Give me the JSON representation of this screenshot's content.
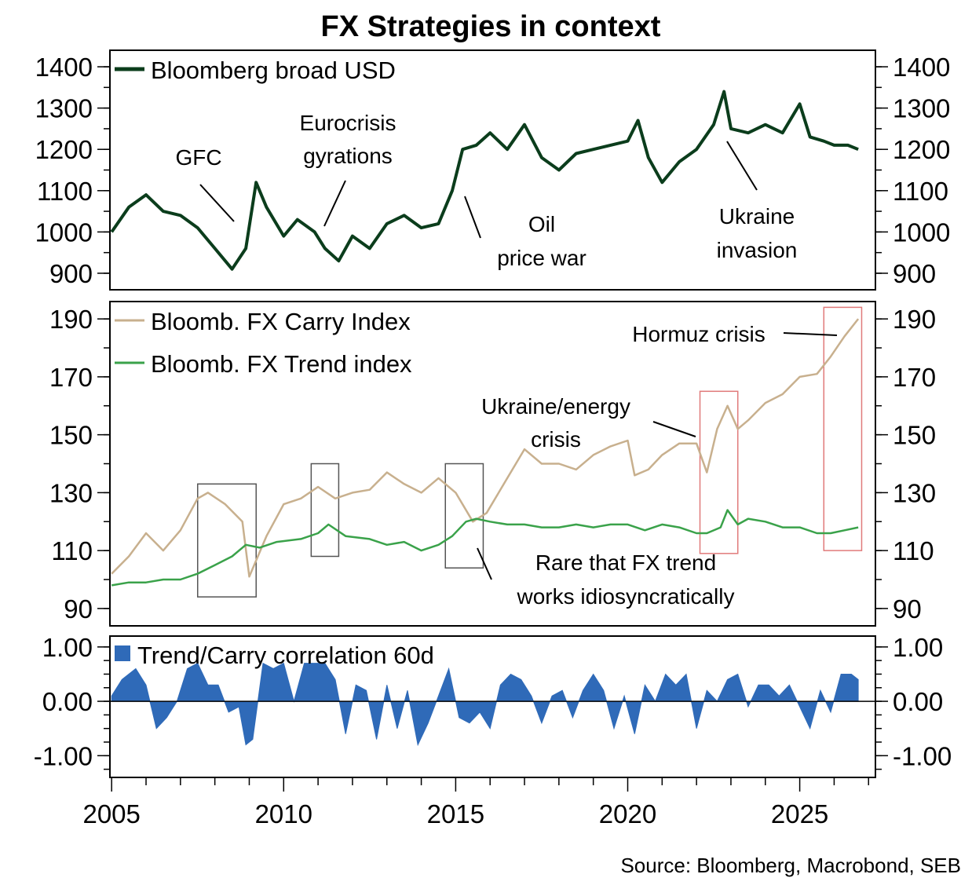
{
  "title": "FX Strategies in context",
  "source": "Source: Bloomberg, Macrobond, SEB",
  "colors": {
    "usd": "#0b3d1c",
    "carry": "#c8b08e",
    "trend": "#3aa24a",
    "corr": "#2f6ab8",
    "box_dark": "#555555",
    "box_red": "#e07a7a"
  },
  "chart_data": [
    {
      "type": "line",
      "panel": "top",
      "series": [
        {
          "name": "Bloomberg broad USD",
          "x": [
            2005.0,
            2005.5,
            2006.0,
            2006.5,
            2007.0,
            2007.5,
            2008.0,
            2008.5,
            2008.9,
            2009.2,
            2009.5,
            2010.0,
            2010.4,
            2010.9,
            2011.2,
            2011.6,
            2012.0,
            2012.5,
            2013.0,
            2013.5,
            2014.0,
            2014.5,
            2014.9,
            2015.2,
            2015.6,
            2016.0,
            2016.5,
            2017.0,
            2017.5,
            2018.0,
            2018.5,
            2019.0,
            2019.5,
            2020.0,
            2020.3,
            2020.6,
            2021.0,
            2021.5,
            2022.0,
            2022.5,
            2022.8,
            2023.0,
            2023.5,
            2024.0,
            2024.5,
            2025.0,
            2025.3,
            2025.7,
            2026.0,
            2026.4,
            2026.7
          ],
          "values": [
            1000,
            1060,
            1090,
            1050,
            1040,
            1010,
            960,
            910,
            960,
            1120,
            1060,
            990,
            1030,
            1000,
            960,
            930,
            990,
            960,
            1020,
            1040,
            1010,
            1020,
            1100,
            1200,
            1210,
            1240,
            1200,
            1260,
            1180,
            1150,
            1190,
            1200,
            1210,
            1220,
            1270,
            1180,
            1120,
            1170,
            1200,
            1260,
            1340,
            1250,
            1240,
            1260,
            1240,
            1310,
            1230,
            1220,
            1210,
            1210,
            1200
          ]
        }
      ],
      "annotations": [
        {
          "text": "GFC",
          "year": 2008.5
        },
        {
          "text_lines": [
            "Eurocrisis",
            "gyrations"
          ],
          "year": 2011.2
        },
        {
          "text_lines": [
            "Oil",
            "price war"
          ],
          "year": 2015.3
        },
        {
          "text_lines": [
            "Ukraine",
            "invasion"
          ],
          "year": 2022.9
        }
      ],
      "ylim": [
        860,
        1440
      ],
      "yticks": [
        "900",
        "1000",
        "1100",
        "1200",
        "1300",
        "1400"
      ],
      "ytick_values": [
        900,
        1000,
        1100,
        1200,
        1300,
        1400
      ]
    },
    {
      "type": "line",
      "panel": "middle",
      "series": [
        {
          "name": "Bloomb. FX Carry Index",
          "x": [
            2005.0,
            2005.5,
            2006.0,
            2006.5,
            2007.0,
            2007.5,
            2007.8,
            2008.3,
            2008.8,
            2009.0,
            2009.5,
            2010.0,
            2010.5,
            2011.0,
            2011.5,
            2012.0,
            2012.5,
            2013.0,
            2013.5,
            2014.0,
            2014.5,
            2015.0,
            2015.5,
            2015.9,
            2016.5,
            2017.0,
            2017.5,
            2018.0,
            2018.5,
            2019.0,
            2019.5,
            2020.0,
            2020.2,
            2020.6,
            2021.0,
            2021.5,
            2022.0,
            2022.3,
            2022.6,
            2022.9,
            2023.2,
            2023.5,
            2024.0,
            2024.5,
            2025.0,
            2025.5,
            2025.9,
            2026.3,
            2026.7
          ],
          "values": [
            102,
            108,
            116,
            110,
            117,
            128,
            130,
            126,
            120,
            101,
            115,
            126,
            128,
            132,
            128,
            130,
            131,
            137,
            133,
            130,
            135,
            130,
            120,
            123,
            135,
            145,
            140,
            140,
            138,
            143,
            146,
            148,
            136,
            138,
            143,
            147,
            147,
            137,
            152,
            160,
            152,
            155,
            161,
            164,
            170,
            171,
            177,
            184,
            190
          ]
        },
        {
          "name": "Bloomb. FX Trend index",
          "x": [
            2005.0,
            2005.5,
            2006.0,
            2006.5,
            2007.0,
            2007.5,
            2008.0,
            2008.5,
            2008.9,
            2009.3,
            2009.8,
            2010.5,
            2011.0,
            2011.3,
            2011.8,
            2012.5,
            2013.0,
            2013.5,
            2014.0,
            2014.5,
            2014.9,
            2015.3,
            2015.6,
            2016.0,
            2016.5,
            2017.0,
            2017.5,
            2018.0,
            2018.5,
            2019.0,
            2019.5,
            2020.0,
            2020.5,
            2021.0,
            2021.5,
            2022.0,
            2022.3,
            2022.7,
            2022.9,
            2023.2,
            2023.5,
            2024.0,
            2024.5,
            2025.0,
            2025.5,
            2025.9,
            2026.3,
            2026.7
          ],
          "values": [
            98,
            99,
            99,
            100,
            100,
            102,
            105,
            108,
            112,
            111,
            113,
            114,
            116,
            119,
            115,
            114,
            112,
            113,
            110,
            112,
            115,
            120,
            121,
            120,
            119,
            119,
            118,
            118,
            119,
            118,
            119,
            119,
            117,
            119,
            118,
            116,
            116,
            118,
            124,
            119,
            121,
            120,
            118,
            118,
            116,
            116,
            117,
            118
          ]
        }
      ],
      "annotations": [
        {
          "text": "Hormuz crisis",
          "year": 2026.5
        },
        {
          "text_lines": [
            "Ukraine/energy",
            "crisis"
          ],
          "year": 2022.0
        },
        {
          "text_lines": [
            "Rare that FX trend",
            "works idiosyncratically"
          ],
          "year": 2015.0
        }
      ],
      "ylim": [
        84,
        196
      ],
      "yticks": [
        "90",
        "110",
        "130",
        "150",
        "170",
        "190"
      ],
      "ytick_values": [
        90,
        110,
        130,
        150,
        170,
        190
      ],
      "boxes": [
        {
          "x0": 2007.5,
          "x1": 2009.2,
          "y0": 94,
          "y1": 133,
          "style": "dark"
        },
        {
          "x0": 2010.8,
          "x1": 2011.6,
          "y0": 108,
          "y1": 140,
          "style": "dark"
        },
        {
          "x0": 2014.7,
          "x1": 2015.8,
          "y0": 104,
          "y1": 140,
          "style": "dark"
        },
        {
          "x0": 2022.1,
          "x1": 2023.2,
          "y0": 109,
          "y1": 165,
          "style": "red"
        },
        {
          "x0": 2025.7,
          "x1": 2026.8,
          "y0": 110,
          "y1": 194,
          "style": "red"
        }
      ]
    },
    {
      "type": "area",
      "panel": "bottom",
      "series": [
        {
          "name": "Trend/Carry correlation 60d",
          "x": [
            2005.0,
            2005.3,
            2005.7,
            2006.0,
            2006.3,
            2006.6,
            2006.9,
            2007.2,
            2007.5,
            2007.8,
            2008.1,
            2008.4,
            2008.7,
            2008.9,
            2009.1,
            2009.4,
            2009.7,
            2010.0,
            2010.3,
            2010.6,
            2010.9,
            2011.2,
            2011.5,
            2011.8,
            2012.1,
            2012.4,
            2012.7,
            2013.0,
            2013.3,
            2013.6,
            2013.9,
            2014.2,
            2014.5,
            2014.8,
            2015.1,
            2015.4,
            2015.7,
            2016.0,
            2016.3,
            2016.6,
            2016.9,
            2017.2,
            2017.5,
            2017.8,
            2018.1,
            2018.4,
            2018.7,
            2019.0,
            2019.3,
            2019.6,
            2019.9,
            2020.2,
            2020.5,
            2020.8,
            2021.1,
            2021.4,
            2021.7,
            2022.0,
            2022.3,
            2022.6,
            2022.9,
            2023.2,
            2023.5,
            2023.8,
            2024.1,
            2024.4,
            2024.7,
            2025.0,
            2025.3,
            2025.6,
            2025.9,
            2026.2,
            2026.5,
            2026.7
          ],
          "values": [
            0.1,
            0.4,
            0.6,
            0.3,
            -0.5,
            -0.3,
            0.0,
            0.6,
            0.7,
            0.3,
            0.3,
            -0.2,
            -0.1,
            -0.8,
            -0.7,
            0.7,
            0.6,
            0.7,
            0.0,
            0.7,
            0.7,
            0.7,
            0.4,
            -0.6,
            0.3,
            0.2,
            -0.7,
            0.3,
            -0.5,
            0.2,
            -0.8,
            -0.4,
            0.1,
            0.6,
            -0.3,
            -0.4,
            -0.2,
            -0.5,
            0.3,
            0.5,
            0.4,
            0.1,
            -0.4,
            0.1,
            0.2,
            -0.3,
            0.2,
            0.5,
            0.2,
            -0.5,
            0.1,
            -0.6,
            0.3,
            0.0,
            0.5,
            0.3,
            0.5,
            -0.5,
            0.2,
            0.0,
            0.4,
            0.5,
            -0.1,
            0.3,
            0.3,
            0.1,
            0.3,
            -0.1,
            -0.5,
            0.2,
            -0.2,
            0.5,
            0.5,
            0.4
          ]
        }
      ],
      "ylim": [
        -1.4,
        1.2
      ],
      "yticks": [
        "-1.00",
        "0.00",
        "1.00"
      ],
      "ytick_values": [
        -1,
        0,
        1
      ]
    }
  ],
  "x_axis": {
    "xlim": [
      2004.95,
      2027.2
    ],
    "ticks": [
      "2005",
      "2010",
      "2015",
      "2020",
      "2025"
    ],
    "tick_values": [
      2005,
      2010,
      2015,
      2020,
      2025
    ]
  }
}
